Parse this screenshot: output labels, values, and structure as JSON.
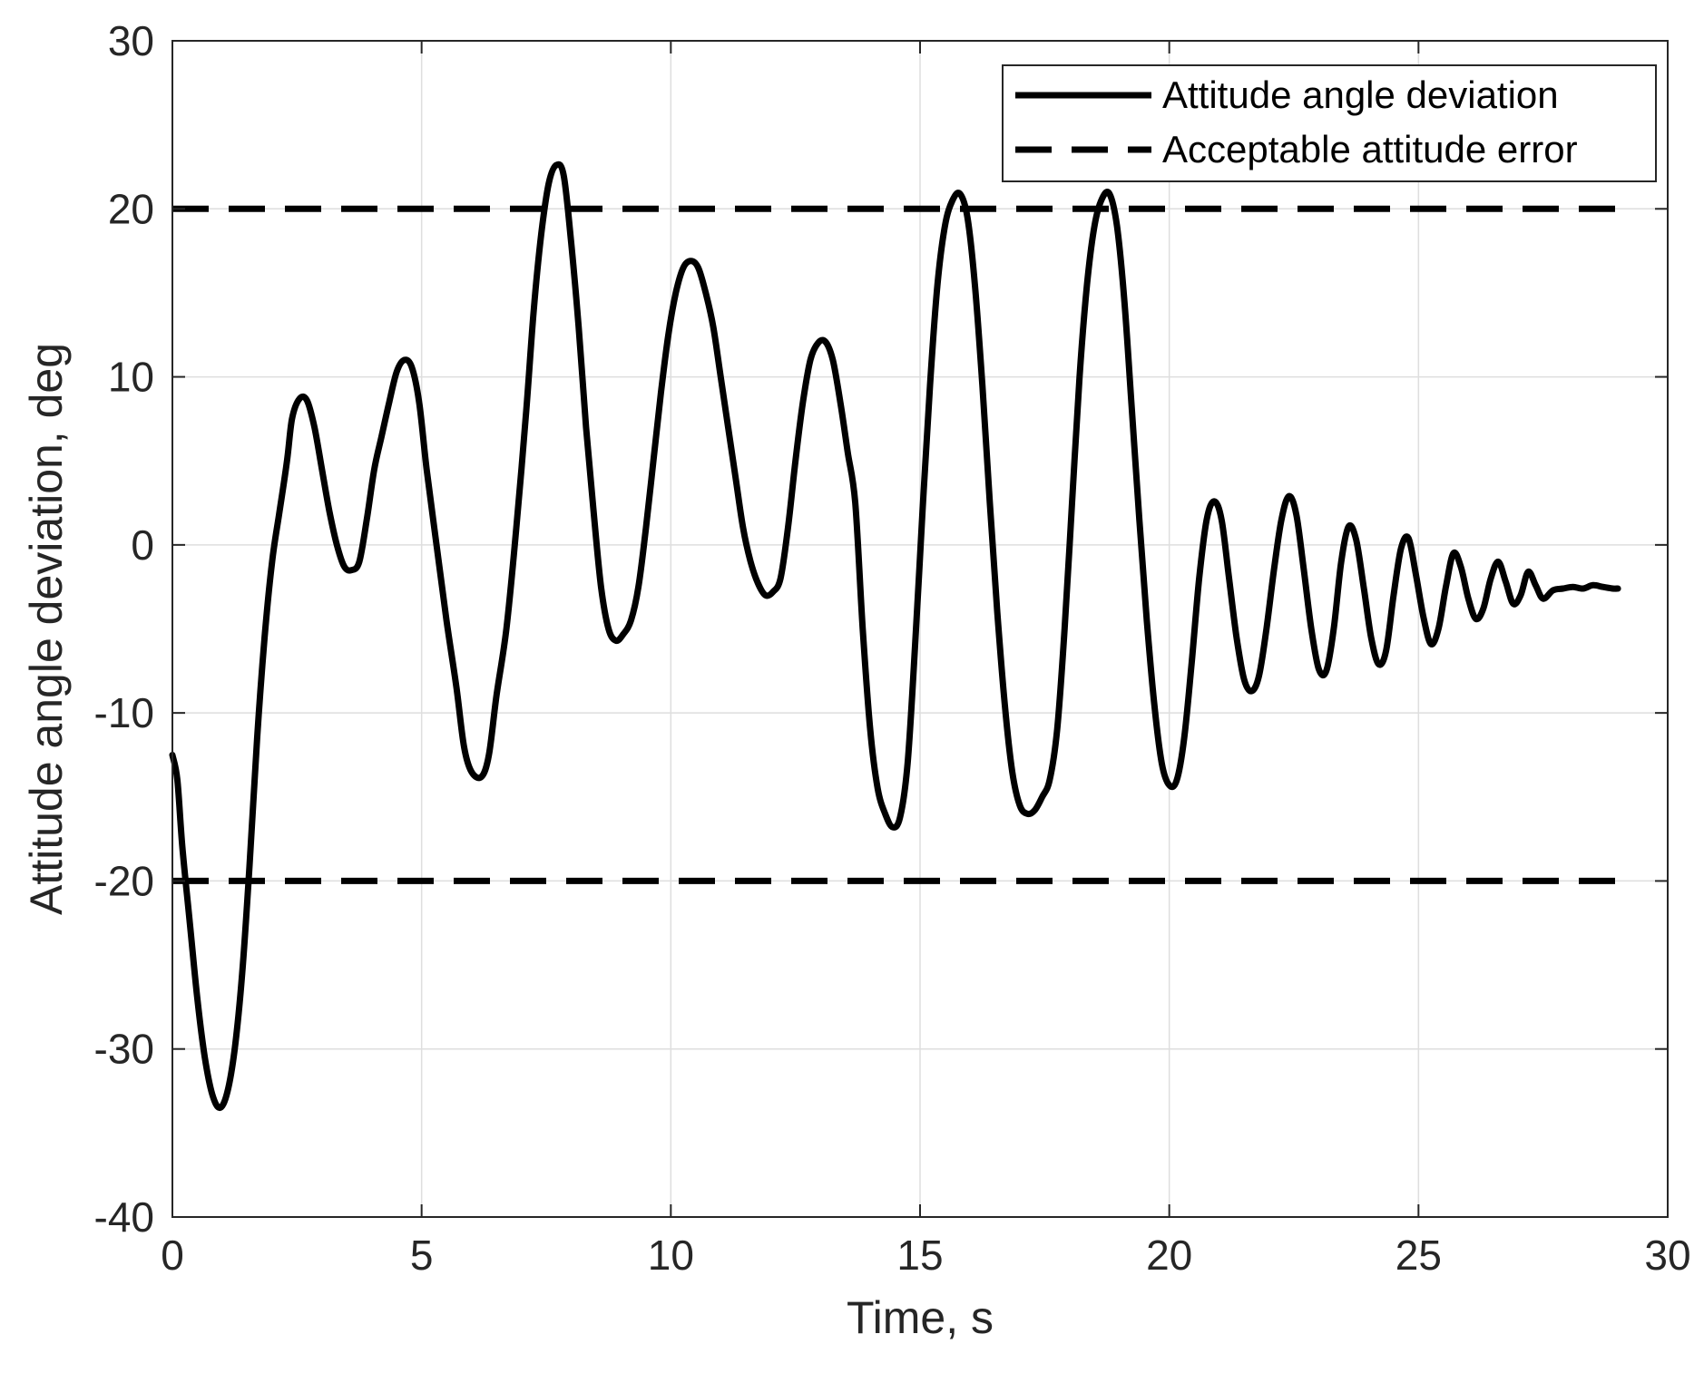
{
  "chart_data": {
    "type": "line",
    "xlabel": "Time, s",
    "ylabel": "Attitude angle deviation, deg",
    "xlim": [
      0,
      30
    ],
    "ylim": [
      -40,
      30
    ],
    "xticks": [
      0,
      5,
      10,
      15,
      20,
      25,
      30
    ],
    "yticks": [
      -40,
      -30,
      -20,
      -10,
      0,
      10,
      20,
      30
    ],
    "xtick_labels": [
      "0",
      "5",
      "10",
      "15",
      "20",
      "25",
      "30"
    ],
    "ytick_labels": [
      "-40",
      "-30",
      "-20",
      "-10",
      "0",
      "10",
      "20",
      "30"
    ],
    "grid": true,
    "legend_position": "top-right",
    "series": [
      {
        "name": "Attitude angle deviation",
        "style": "solid",
        "color": "#000000",
        "points": [
          [
            0.0,
            -12.5
          ],
          [
            0.1,
            -14.0
          ],
          [
            0.2,
            -18.0
          ],
          [
            0.35,
            -22.5
          ],
          [
            0.5,
            -27.0
          ],
          [
            0.65,
            -30.5
          ],
          [
            0.8,
            -32.7
          ],
          [
            0.95,
            -33.5
          ],
          [
            1.1,
            -32.6
          ],
          [
            1.25,
            -30.0
          ],
          [
            1.4,
            -25.5
          ],
          [
            1.55,
            -19.0
          ],
          [
            1.7,
            -11.5
          ],
          [
            1.85,
            -5.5
          ],
          [
            2.0,
            -1.0
          ],
          [
            2.15,
            2.0
          ],
          [
            2.3,
            5.0
          ],
          [
            2.4,
            7.5
          ],
          [
            2.55,
            8.7
          ],
          [
            2.7,
            8.6
          ],
          [
            2.85,
            7.0
          ],
          [
            3.0,
            4.5
          ],
          [
            3.15,
            2.0
          ],
          [
            3.3,
            0.0
          ],
          [
            3.45,
            -1.3
          ],
          [
            3.6,
            -1.5
          ],
          [
            3.75,
            -1.0
          ],
          [
            3.9,
            1.5
          ],
          [
            4.05,
            4.5
          ],
          [
            4.2,
            6.5
          ],
          [
            4.35,
            8.5
          ],
          [
            4.5,
            10.3
          ],
          [
            4.65,
            11.0
          ],
          [
            4.8,
            10.6
          ],
          [
            4.95,
            8.5
          ],
          [
            5.1,
            4.5
          ],
          [
            5.3,
            0.0
          ],
          [
            5.5,
            -4.5
          ],
          [
            5.7,
            -8.5
          ],
          [
            5.85,
            -12.0
          ],
          [
            6.0,
            -13.5
          ],
          [
            6.2,
            -13.8
          ],
          [
            6.35,
            -12.5
          ],
          [
            6.5,
            -9.0
          ],
          [
            6.7,
            -5.0
          ],
          [
            6.9,
            1.0
          ],
          [
            7.1,
            8.0
          ],
          [
            7.25,
            14.0
          ],
          [
            7.4,
            18.5
          ],
          [
            7.55,
            21.5
          ],
          [
            7.7,
            22.6
          ],
          [
            7.85,
            22.0
          ],
          [
            8.0,
            18.0
          ],
          [
            8.15,
            13.0
          ],
          [
            8.3,
            7.0
          ],
          [
            8.45,
            2.0
          ],
          [
            8.6,
            -2.5
          ],
          [
            8.75,
            -5.0
          ],
          [
            8.9,
            -5.7
          ],
          [
            9.05,
            -5.3
          ],
          [
            9.2,
            -4.5
          ],
          [
            9.35,
            -2.5
          ],
          [
            9.5,
            1.0
          ],
          [
            9.65,
            5.0
          ],
          [
            9.8,
            9.0
          ],
          [
            9.95,
            12.5
          ],
          [
            10.1,
            15.0
          ],
          [
            10.25,
            16.5
          ],
          [
            10.4,
            16.9
          ],
          [
            10.55,
            16.5
          ],
          [
            10.7,
            15.0
          ],
          [
            10.85,
            13.0
          ],
          [
            11.0,
            10.0
          ],
          [
            11.15,
            7.0
          ],
          [
            11.3,
            4.0
          ],
          [
            11.45,
            1.0
          ],
          [
            11.6,
            -1.0
          ],
          [
            11.75,
            -2.3
          ],
          [
            11.9,
            -3.0
          ],
          [
            12.05,
            -2.8
          ],
          [
            12.2,
            -2.0
          ],
          [
            12.35,
            1.0
          ],
          [
            12.5,
            5.0
          ],
          [
            12.65,
            8.5
          ],
          [
            12.8,
            11.0
          ],
          [
            12.95,
            12.0
          ],
          [
            13.1,
            12.1
          ],
          [
            13.25,
            11.0
          ],
          [
            13.4,
            8.5
          ],
          [
            13.55,
            5.5
          ],
          [
            13.7,
            2.5
          ],
          [
            13.85,
            -5.0
          ],
          [
            14.0,
            -11.0
          ],
          [
            14.15,
            -14.5
          ],
          [
            14.3,
            -16.0
          ],
          [
            14.45,
            -16.8
          ],
          [
            14.6,
            -16.2
          ],
          [
            14.75,
            -13.0
          ],
          [
            14.9,
            -6.0
          ],
          [
            15.05,
            2.0
          ],
          [
            15.2,
            9.5
          ],
          [
            15.35,
            15.5
          ],
          [
            15.5,
            19.0
          ],
          [
            15.65,
            20.5
          ],
          [
            15.8,
            20.9
          ],
          [
            15.95,
            19.5
          ],
          [
            16.1,
            15.5
          ],
          [
            16.25,
            9.5
          ],
          [
            16.4,
            2.5
          ],
          [
            16.55,
            -4.0
          ],
          [
            16.7,
            -9.5
          ],
          [
            16.85,
            -13.5
          ],
          [
            17.0,
            -15.5
          ],
          [
            17.15,
            -16.0
          ],
          [
            17.3,
            -15.8
          ],
          [
            17.45,
            -15.0
          ],
          [
            17.6,
            -14.0
          ],
          [
            17.75,
            -11.0
          ],
          [
            17.9,
            -5.0
          ],
          [
            18.05,
            2.5
          ],
          [
            18.2,
            10.0
          ],
          [
            18.35,
            15.5
          ],
          [
            18.5,
            19.0
          ],
          [
            18.65,
            20.6
          ],
          [
            18.8,
            20.9
          ],
          [
            18.95,
            19.0
          ],
          [
            19.1,
            14.5
          ],
          [
            19.25,
            8.0
          ],
          [
            19.4,
            1.5
          ],
          [
            19.55,
            -4.5
          ],
          [
            19.7,
            -9.5
          ],
          [
            19.85,
            -13.0
          ],
          [
            20.0,
            -14.3
          ],
          [
            20.15,
            -14.0
          ],
          [
            20.3,
            -11.5
          ],
          [
            20.45,
            -7.0
          ],
          [
            20.6,
            -2.0
          ],
          [
            20.75,
            1.5
          ],
          [
            20.9,
            2.6
          ],
          [
            21.05,
            1.5
          ],
          [
            21.2,
            -2.0
          ],
          [
            21.35,
            -5.5
          ],
          [
            21.5,
            -8.0
          ],
          [
            21.65,
            -8.7
          ],
          [
            21.8,
            -7.8
          ],
          [
            21.95,
            -5.0
          ],
          [
            22.1,
            -1.5
          ],
          [
            22.25,
            1.5
          ],
          [
            22.4,
            2.9
          ],
          [
            22.55,
            1.8
          ],
          [
            22.7,
            -1.5
          ],
          [
            22.85,
            -5.0
          ],
          [
            23.0,
            -7.4
          ],
          [
            23.15,
            -7.5
          ],
          [
            23.3,
            -5.0
          ],
          [
            23.45,
            -1.0
          ],
          [
            23.6,
            1.1
          ],
          [
            23.75,
            0.3
          ],
          [
            23.9,
            -2.5
          ],
          [
            24.05,
            -5.5
          ],
          [
            24.2,
            -7.1
          ],
          [
            24.35,
            -6.3
          ],
          [
            24.5,
            -3.0
          ],
          [
            24.65,
            -0.2
          ],
          [
            24.8,
            0.4
          ],
          [
            24.95,
            -1.8
          ],
          [
            25.1,
            -4.3
          ],
          [
            25.25,
            -5.9
          ],
          [
            25.4,
            -5.0
          ],
          [
            25.55,
            -2.5
          ],
          [
            25.7,
            -0.5
          ],
          [
            25.85,
            -1.3
          ],
          [
            26.0,
            -3.2
          ],
          [
            26.15,
            -4.4
          ],
          [
            26.3,
            -3.8
          ],
          [
            26.45,
            -2.0
          ],
          [
            26.6,
            -1.0
          ],
          [
            26.75,
            -2.2
          ],
          [
            26.9,
            -3.5
          ],
          [
            27.05,
            -3.0
          ],
          [
            27.2,
            -1.6
          ],
          [
            27.35,
            -2.4
          ],
          [
            27.5,
            -3.2
          ],
          [
            27.7,
            -2.7
          ],
          [
            27.9,
            -2.6
          ],
          [
            28.1,
            -2.5
          ],
          [
            28.3,
            -2.6
          ],
          [
            28.5,
            -2.4
          ],
          [
            28.7,
            -2.5
          ],
          [
            28.9,
            -2.6
          ],
          [
            29.0,
            -2.6
          ]
        ]
      },
      {
        "name": "Acceptable attitude error",
        "style": "dashed",
        "color": "#000000",
        "bounds": [
          20,
          -20
        ],
        "x_range": [
          0,
          29.0
        ]
      }
    ]
  }
}
